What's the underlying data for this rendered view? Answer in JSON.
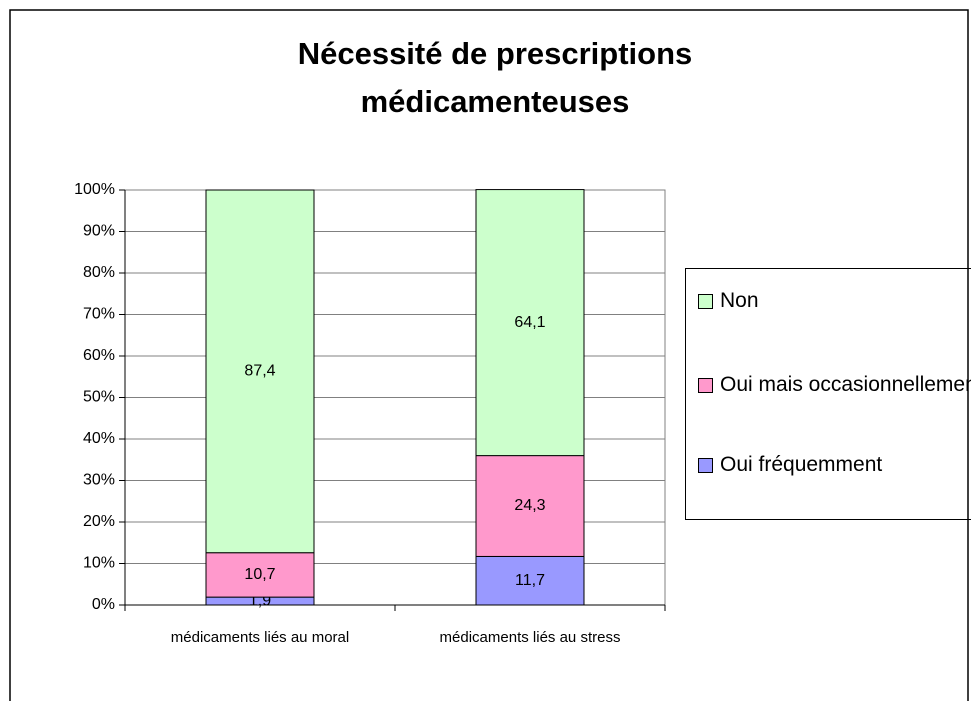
{
  "chart_data": {
    "type": "stacked_bar",
    "title": "Nécessité de prescriptions médicamenteuses",
    "categories": [
      "médicaments liés au moral",
      "médicaments liés au stress"
    ],
    "series": [
      {
        "name": "Oui fréquemment",
        "color": "#9999ff",
        "values": [
          1.9,
          11.7
        ],
        "value_labels": [
          "1,9",
          "11,7"
        ]
      },
      {
        "name": "Oui mais occasionnellement",
        "color": "#ff99cc",
        "values": [
          10.7,
          24.3
        ],
        "value_labels": [
          "10,7",
          "24,3"
        ]
      },
      {
        "name": "Non",
        "color": "#ccffcc",
        "values": [
          87.4,
          64.1
        ],
        "value_labels": [
          "87,4",
          "64,1"
        ]
      }
    ],
    "ylim": [
      0,
      100
    ],
    "yticks": [
      {
        "value": 0,
        "label": "0%"
      },
      {
        "value": 10,
        "label": "10%"
      },
      {
        "value": 20,
        "label": "20%"
      },
      {
        "value": 30,
        "label": "30%"
      },
      {
        "value": 40,
        "label": "40%"
      },
      {
        "value": 50,
        "label": "50%"
      },
      {
        "value": 60,
        "label": "60%"
      },
      {
        "value": 70,
        "label": "70%"
      },
      {
        "value": 80,
        "label": "80%"
      },
      {
        "value": 90,
        "label": "90%"
      },
      {
        "value": 100,
        "label": "100%"
      }
    ],
    "grid": true,
    "legend": "right"
  }
}
